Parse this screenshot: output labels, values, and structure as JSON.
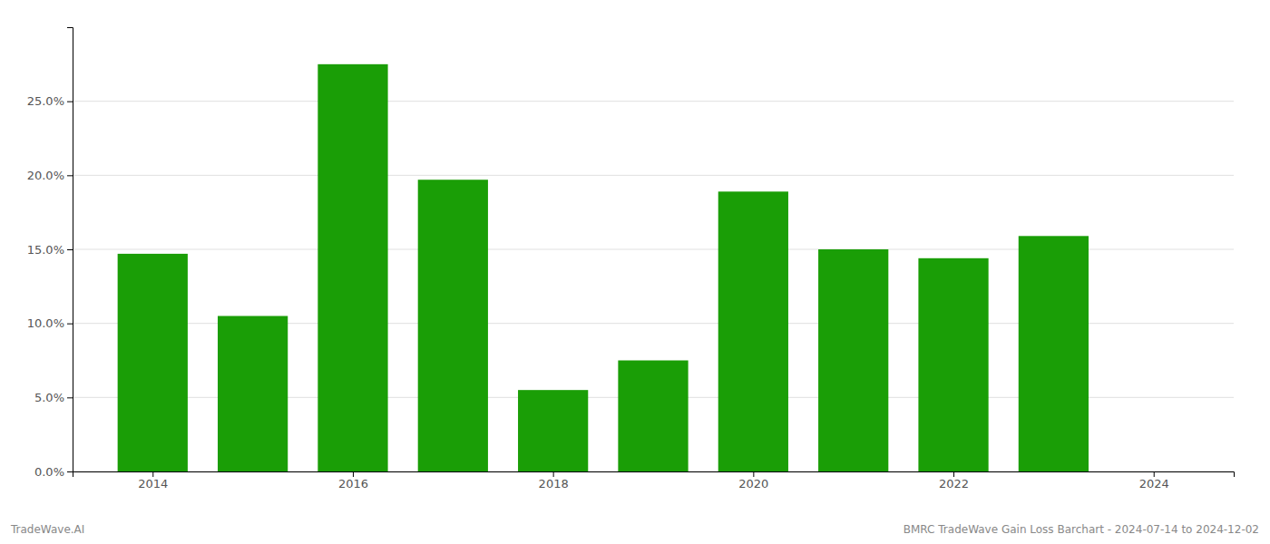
{
  "chart_data": {
    "type": "bar",
    "x": [
      2014,
      2015,
      2016,
      2017,
      2018,
      2019,
      2020,
      2021,
      2022,
      2023
    ],
    "values": [
      0.147,
      0.105,
      0.275,
      0.197,
      0.055,
      0.075,
      0.189,
      0.15,
      0.144,
      0.159
    ],
    "color": "#1a9e06",
    "xlim": [
      2013.2,
      2024.8
    ],
    "xticks": [
      2014,
      2016,
      2018,
      2020,
      2022,
      2024
    ],
    "ylim": [
      0,
      0.3
    ],
    "yticks": [
      {
        "value": 0.0,
        "label": "0.0%"
      },
      {
        "value": 0.05,
        "label": "5.0%"
      },
      {
        "value": 0.1,
        "label": "10.0%"
      },
      {
        "value": 0.15,
        "label": "15.0%"
      },
      {
        "value": 0.2,
        "label": "20.0%"
      },
      {
        "value": 0.25,
        "label": "25.0%"
      }
    ],
    "grid": true,
    "annotations": [
      "TradeWave.AI",
      "BMRC TradeWave Gain Loss Barchart - 2024-07-14 to 2024-12-02"
    ]
  }
}
